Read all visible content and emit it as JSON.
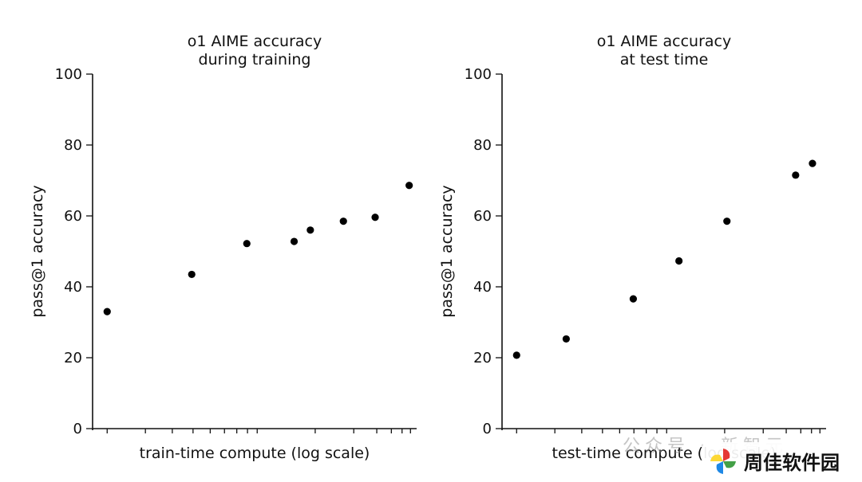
{
  "chart_data": [
    {
      "type": "scatter",
      "title": [
        "o1 AIME accuracy",
        "during training"
      ],
      "xlabel": "train-time compute (log scale)",
      "ylabel": "pass@1 accuracy",
      "xscale": "log",
      "xlim": [
        0,
        1
      ],
      "ylim": [
        0,
        100
      ],
      "yticks": [
        0,
        20,
        40,
        60,
        80,
        100
      ],
      "tick_labels": [
        "0",
        "20",
        "40",
        "60",
        "80",
        "100"
      ],
      "grid": false,
      "series": [
        {
          "x": [
            0.045,
            0.306,
            0.476,
            0.622,
            0.672,
            0.774,
            0.872,
            0.977
          ],
          "y": [
            33.0,
            43.5,
            52.2,
            52.8,
            56.0,
            58.5,
            59.6,
            68.6
          ]
        }
      ]
    },
    {
      "type": "scatter",
      "title": [
        "o1 AIME accuracy",
        "at test time"
      ],
      "xlabel": "test-time compute (log scale)",
      "ylabel": "pass@1 accuracy",
      "xscale": "log",
      "xlim": [
        0,
        1
      ],
      "ylim": [
        0,
        100
      ],
      "yticks": [
        0,
        20,
        40,
        60,
        80,
        100
      ],
      "tick_labels": [
        "0",
        "20",
        "40",
        "60",
        "80",
        "100"
      ],
      "grid": false,
      "series": [
        {
          "x": [
            0.045,
            0.198,
            0.405,
            0.546,
            0.694,
            0.906,
            0.958
          ],
          "y": [
            20.7,
            25.3,
            36.6,
            47.3,
            58.5,
            71.5,
            74.8
          ]
        }
      ]
    }
  ],
  "watermark": {
    "faint_text": "公众号 · 新智元",
    "brand": "周佳软件园",
    "logo_icon": "pinwheel-logo-icon",
    "logo_colors": [
      "#e53935",
      "#43a047",
      "#1e88e5",
      "#fdd835"
    ]
  }
}
